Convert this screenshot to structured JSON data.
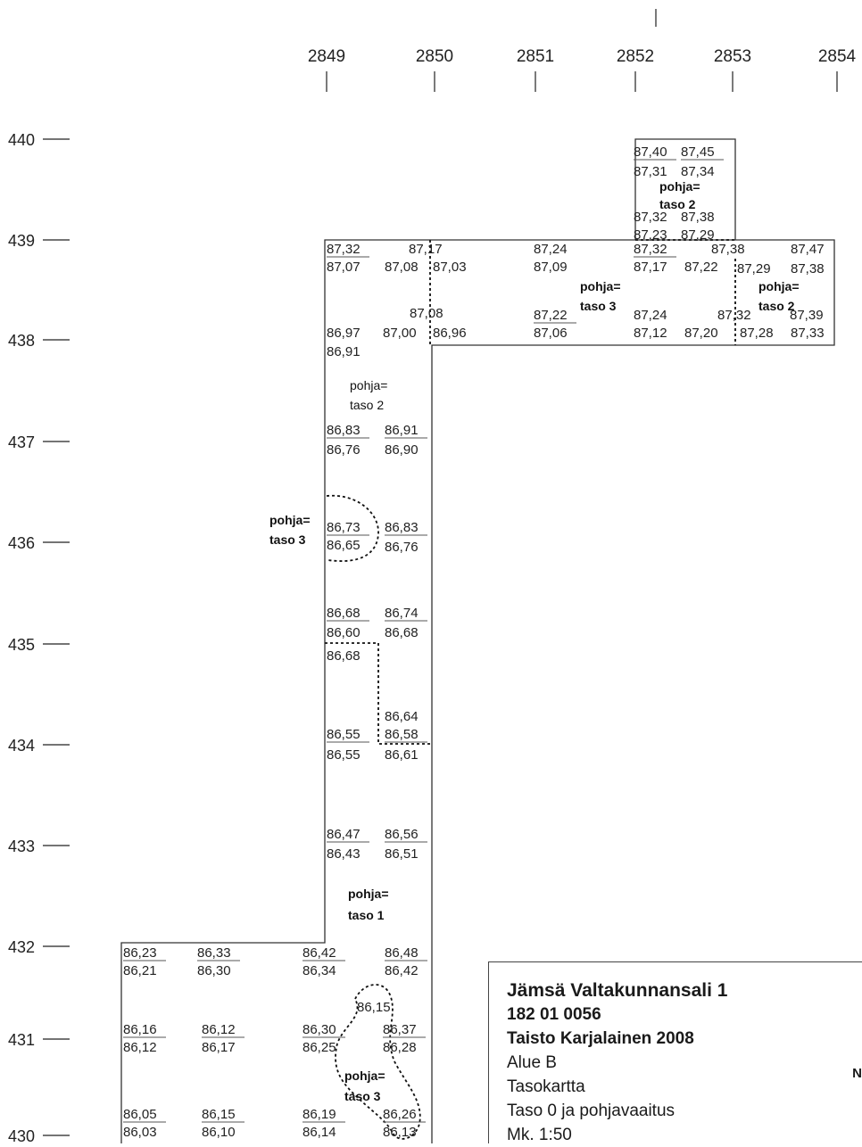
{
  "x_axis_labels": [
    "2849",
    "2850",
    "2851",
    "2852",
    "2853",
    "2854"
  ],
  "y_axis_labels": [
    "440",
    "439",
    "438",
    "437",
    "436",
    "435",
    "434",
    "433",
    "432",
    "431",
    "430"
  ],
  "elevations": [
    "87,40",
    "87,45",
    "87,31",
    "87,34",
    "87,32",
    "87,38",
    "87,23",
    "87,29",
    "87,32",
    "87,17",
    "87,24",
    "87,32",
    "87,38",
    "87,47",
    "87,07",
    "87,08",
    "87,03",
    "87,09",
    "87,17",
    "87,22",
    "87,29",
    "87,38",
    "87,08",
    "87,22",
    "87,24",
    "87,32",
    "87,39",
    "86,97",
    "87,00",
    "86,96",
    "87,06",
    "87,12",
    "87,20",
    "87,28",
    "87,33",
    "86,91",
    "86,83",
    "86,91",
    "86,76",
    "86,90",
    "86,73",
    "86,83",
    "86,65",
    "86,76",
    "86,68",
    "86,74",
    "86,60",
    "86,68",
    "86,68",
    "86,64",
    "86,55",
    "86,58",
    "86,55",
    "86,61",
    "86,47",
    "86,56",
    "86,43",
    "86,51",
    "86,23",
    "86,33",
    "86,42",
    "86,48",
    "86,21",
    "86,30",
    "86,34",
    "86,42",
    "86,15",
    "86,16",
    "86,12",
    "86,30",
    "86,37",
    "86,12",
    "86,17",
    "86,25",
    "86,28",
    "86,05",
    "86,15",
    "86,19",
    "86,26",
    "86,03",
    "86,10",
    "86,14",
    "86,13"
  ],
  "zones": [
    {
      "l1": "pohja=",
      "l2": "taso 2"
    },
    {
      "l1": "pohja=",
      "l2": "taso 3"
    },
    {
      "l1": "pohja=",
      "l2": "taso 2"
    },
    {
      "l1": "pohja=",
      "l2": "taso 2"
    },
    {
      "l1": "pohja=",
      "l2": "taso 3"
    },
    {
      "l1": "pohja=",
      "l2": "taso 1"
    },
    {
      "l1": "pohja=",
      "l2": "taso 3"
    }
  ],
  "title_block": {
    "site": "Jämsä Valtakunnansali 1",
    "code": "182 01 0056",
    "author": "Taisto Karjalainen 2008",
    "area": "Alue B",
    "type": "Tasokartta",
    "level": "Taso 0 ja pohjavaaitus",
    "scale": "Mk. 1:50"
  },
  "north_arrow_label": "N"
}
